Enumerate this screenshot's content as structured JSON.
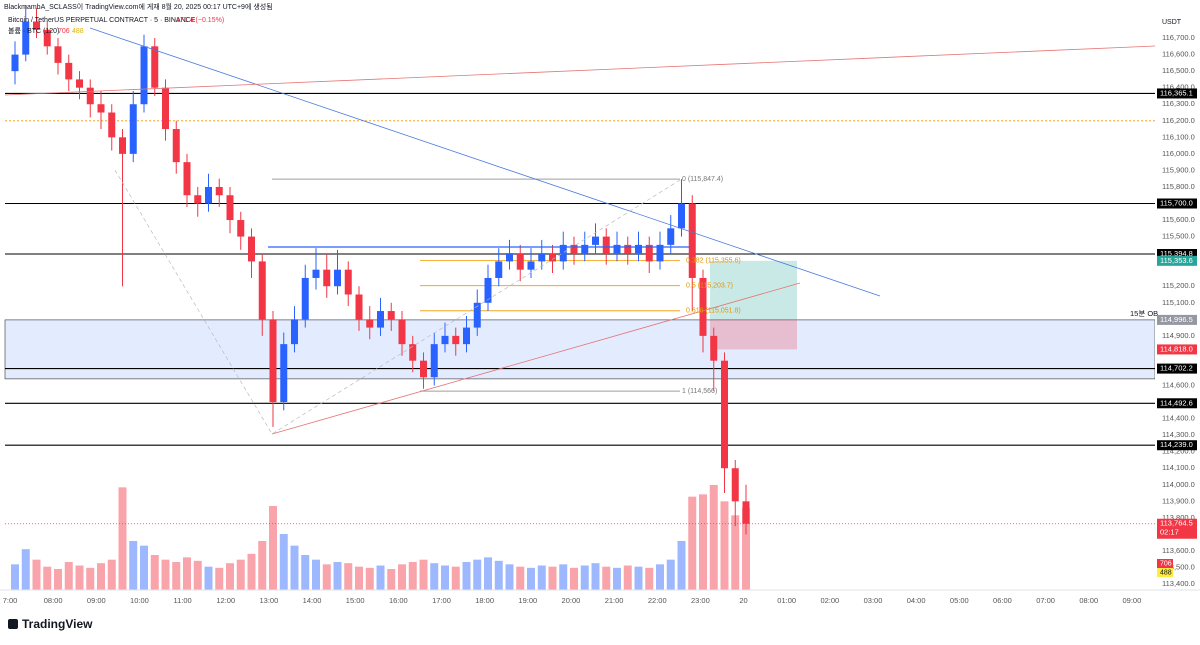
{
  "header": {
    "credit": "BlackmambA_SCLASS이 TradingView.com에 게재 8월 20, 2025 00:17 UTC+9에 생성됨",
    "brand": "TradingView"
  },
  "chart_data": {
    "type": "candlestick",
    "title": "Bitcoin / TetherUS PERPETUAL CONTRACT · 5 · BINANCE",
    "change": "−171.4 (−0.15%)",
    "volume_title": "볼륨 · BTC (120)",
    "currency": "USDT",
    "time_labels": [
      "7:00",
      "08:00",
      "09:00",
      "10:00",
      "11:00",
      "12:00",
      "13:00",
      "14:00",
      "15:00",
      "16:00",
      "17:00",
      "18:00",
      "19:00",
      "20:00",
      "21:00",
      "22:00",
      "23:00",
      "20",
      "01:00",
      "02:00",
      "03:00",
      "04:00",
      "05:00",
      "06:00",
      "07:00",
      "08:00",
      "09:00"
    ],
    "open": [
      116500,
      116600,
      116800,
      116750,
      116650,
      116550,
      116450,
      116400,
      116300,
      116250,
      116100,
      116000,
      116300,
      116650,
      116400,
      116150,
      115950,
      115750,
      115700,
      115800,
      115750,
      115600,
      115500,
      115350,
      115000,
      114500,
      114850,
      115000,
      115250,
      115300,
      115200,
      115300,
      115150,
      115000,
      114950,
      115050,
      115000,
      114850,
      114750,
      114650,
      114850,
      114900,
      114850,
      114950,
      115100,
      115250,
      115350,
      115400,
      115300,
      115350,
      115400,
      115350,
      115450,
      115400,
      115450,
      115500,
      115400,
      115450,
      115400,
      115450,
      115350,
      115450,
      115550,
      115700,
      115250,
      114900,
      114750,
      114100,
      113900
    ],
    "high": [
      116680,
      116900,
      116880,
      116800,
      116700,
      116600,
      116500,
      116450,
      116380,
      116300,
      116150,
      116380,
      116720,
      116700,
      116450,
      116200,
      116000,
      115800,
      115880,
      115850,
      115800,
      115650,
      115550,
      115400,
      115050,
      114920,
      115080,
      115330,
      115430,
      115400,
      115420,
      115350,
      115200,
      115080,
      115130,
      115100,
      115050,
      114900,
      114800,
      114920,
      114980,
      114950,
      115020,
      115180,
      115330,
      115430,
      115480,
      115450,
      115430,
      115480,
      115450,
      115530,
      115500,
      115530,
      115580,
      115550,
      115530,
      115500,
      115530,
      115500,
      115530,
      115630,
      115847.4,
      115750,
      115300,
      114950,
      114800,
      114150,
      114000
    ],
    "low": [
      116420,
      116560,
      116700,
      116600,
      116480,
      116380,
      116330,
      116220,
      116150,
      116020,
      115200,
      115950,
      116250,
      116350,
      116080,
      115880,
      115680,
      115620,
      115650,
      115680,
      115520,
      115420,
      115250,
      114900,
      114350,
      114450,
      114800,
      114950,
      115180,
      115130,
      115150,
      115080,
      114930,
      114880,
      114900,
      114930,
      114780,
      114680,
      114580,
      114600,
      114800,
      114780,
      114800,
      114900,
      115050,
      115200,
      115300,
      115230,
      115250,
      115300,
      115280,
      115300,
      115330,
      115350,
      115400,
      115330,
      115350,
      115330,
      115350,
      115280,
      115300,
      115400,
      115500,
      115050,
      114800,
      114566,
      113950,
      113750,
      113700
    ],
    "close": [
      116600,
      116800,
      116750,
      116650,
      116550,
      116450,
      116400,
      116300,
      116250,
      116100,
      116000,
      116300,
      116650,
      116400,
      116150,
      115950,
      115750,
      115700,
      115800,
      115750,
      115600,
      115500,
      115350,
      115000,
      114500,
      114850,
      115000,
      115250,
      115300,
      115200,
      115300,
      115150,
      115000,
      114950,
      115050,
      115000,
      114850,
      114750,
      114650,
      114850,
      114900,
      114850,
      114950,
      115100,
      115250,
      115350,
      115400,
      115300,
      115350,
      115400,
      115350,
      115450,
      115400,
      115450,
      115500,
      115400,
      115450,
      115400,
      115450,
      115350,
      115450,
      115550,
      115700,
      115250,
      114900,
      114750,
      114100,
      113900,
      113764.5
    ],
    "volume": [
      220,
      350,
      260,
      200,
      180,
      240,
      210,
      190,
      230,
      260,
      880,
      420,
      380,
      300,
      260,
      240,
      280,
      250,
      200,
      190,
      230,
      260,
      310,
      420,
      720,
      480,
      380,
      300,
      260,
      220,
      240,
      230,
      200,
      190,
      210,
      180,
      220,
      240,
      260,
      230,
      210,
      200,
      240,
      260,
      280,
      250,
      220,
      200,
      190,
      210,
      200,
      220,
      190,
      210,
      230,
      200,
      190,
      210,
      200,
      190,
      220,
      260,
      420,
      800,
      820,
      900,
      760,
      640,
      706
    ],
    "volume_ma": 488,
    "up_color": "#2962ff",
    "down_color": "#f23645",
    "ylim": [
      113364,
      116930
    ],
    "yticks": [
      {
        "value": 116700,
        "label": "116,700.0"
      },
      {
        "value": 116600,
        "label": "116,600.0"
      },
      {
        "value": 116500,
        "label": "116,500.0"
      },
      {
        "value": 116400,
        "label": "116,400.0"
      },
      {
        "value": 116300,
        "label": "116,300.0"
      },
      {
        "value": 116200,
        "label": "116,200.0"
      },
      {
        "value": 116100,
        "label": "116,100.0"
      },
      {
        "value": 116000,
        "label": "116,000.0"
      },
      {
        "value": 115900,
        "label": "115,900.0"
      },
      {
        "value": 115800,
        "label": "115,800.0"
      },
      {
        "value": 115600,
        "label": "115,600.0"
      },
      {
        "value": 115500,
        "label": "115,500.0"
      },
      {
        "value": 115200,
        "label": "115,200.0"
      },
      {
        "value": 115100,
        "label": "115,100.0"
      },
      {
        "value": 114900,
        "label": "114,900.0"
      },
      {
        "value": 114600,
        "label": "114,600.0"
      },
      {
        "value": 114400,
        "label": "114,400.0"
      },
      {
        "value": 114300,
        "label": "114,300.0"
      },
      {
        "value": 114200,
        "label": "114,200.0"
      },
      {
        "value": 114100,
        "label": "114,100.0"
      },
      {
        "value": 114000,
        "label": "114,000.0"
      },
      {
        "value": 113900,
        "label": "113,900.0"
      },
      {
        "value": 113800,
        "label": "113,800.0"
      },
      {
        "value": 113600,
        "label": "113,600.0"
      },
      {
        "value": 113500,
        "label": "113,500.0"
      },
      {
        "value": 113400,
        "label": "113,400.0"
      }
    ],
    "levels": [
      {
        "value": 116365.1,
        "label": "116,365.1",
        "color": "#000000"
      },
      {
        "value": 115700.0,
        "label": "115,700.0",
        "color": "#000000"
      },
      {
        "value": 115394.8,
        "label": "115,394.8",
        "color": "#000000"
      },
      {
        "value": 114702.2,
        "label": "114,702.2",
        "color": "#000000"
      },
      {
        "value": 114492.6,
        "label": "114,492.6",
        "color": "#000000"
      },
      {
        "value": 114239.0,
        "label": "114,239.0",
        "color": "#000000"
      }
    ],
    "dotted_level": {
      "value": 116200,
      "color": "#f5a623"
    },
    "zone": {
      "top": 114996.5,
      "bottom": 114640,
      "label": "15분 OB",
      "price_label": "114,996.5"
    },
    "target": {
      "value": 115353.6,
      "label": "115,353.6"
    },
    "stop": {
      "value": 114818.0,
      "label": "114,818.0"
    },
    "fib": [
      {
        "value": 115847.4,
        "label": "0 (115,847.4)"
      },
      {
        "value": 115355.6,
        "label": "0.382 (115,355.6)"
      },
      {
        "value": 115203.7,
        "label": "0.5 (115,203.7)"
      },
      {
        "value": 115051.8,
        "label": "0.618 (115,051.8)"
      },
      {
        "value": 114566,
        "label": "1 (114,566)"
      }
    ],
    "last": {
      "value": 113764.5,
      "label": "113,764.5",
      "countdown": "02:17"
    }
  }
}
